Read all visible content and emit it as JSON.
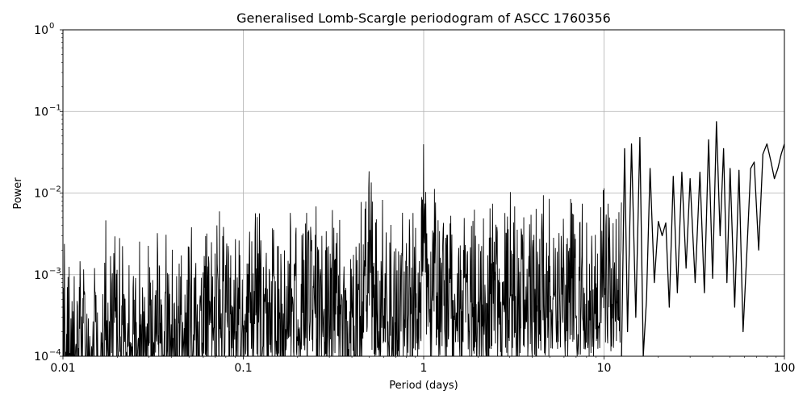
{
  "chart_data": {
    "type": "line",
    "title": "Generalised Lomb-Scargle periodogram of ASCC 1760356",
    "xlabel": "Period (days)",
    "ylabel": "Power",
    "xscale": "log",
    "yscale": "log",
    "xlim": [
      0.01,
      100
    ],
    "ylim": [
      0.0001,
      1
    ],
    "grid": true,
    "line_color": "#000000",
    "x_ticks": [
      {
        "value": 0.01,
        "label": "0.01"
      },
      {
        "value": 0.1,
        "label": "0.1"
      },
      {
        "value": 1,
        "label": "1"
      },
      {
        "value": 10,
        "label": "10"
      },
      {
        "value": 100,
        "label": "100"
      }
    ],
    "y_ticks": [
      {
        "value": 0.0001,
        "base": "10",
        "exp": "−4"
      },
      {
        "value": 0.001,
        "base": "10",
        "exp": "−3"
      },
      {
        "value": 0.01,
        "base": "10",
        "exp": "−2"
      },
      {
        "value": 0.1,
        "base": "10",
        "exp": "−1"
      },
      {
        "value": 1,
        "base": "10",
        "exp": "0"
      }
    ],
    "series": [
      {
        "x": [
          12.5,
          13.0,
          13.5,
          14.2,
          15.0,
          15.8,
          16.5,
          17.2,
          18.0,
          19.0,
          20.0,
          21.0,
          22.0,
          23.0,
          24.2,
          25.5,
          27.0,
          28.5,
          30.0,
          32.0,
          34.0,
          36.0,
          38.0,
          40.0,
          42.0,
          44.0,
          46.0,
          48.0,
          50.0,
          53.0,
          56.0,
          59.0,
          62.0,
          65.0,
          68.0,
          72.0,
          76.0,
          80.0,
          84.0,
          88.0,
          92.0,
          96.0,
          100.0
        ],
        "y": [
          0.0001,
          0.035,
          0.0002,
          0.04,
          0.0003,
          0.048,
          0.0001,
          0.0005,
          0.02,
          0.0008,
          0.0045,
          0.003,
          0.0043,
          0.0004,
          0.016,
          0.0006,
          0.018,
          0.0012,
          0.015,
          0.0008,
          0.018,
          0.0006,
          0.045,
          0.0009,
          0.075,
          0.003,
          0.035,
          0.0008,
          0.02,
          0.0004,
          0.019,
          0.0002,
          0.002,
          0.02,
          0.024,
          0.002,
          0.03,
          0.04,
          0.025,
          0.015,
          0.02,
          0.03,
          0.04
        ]
      }
    ]
  }
}
